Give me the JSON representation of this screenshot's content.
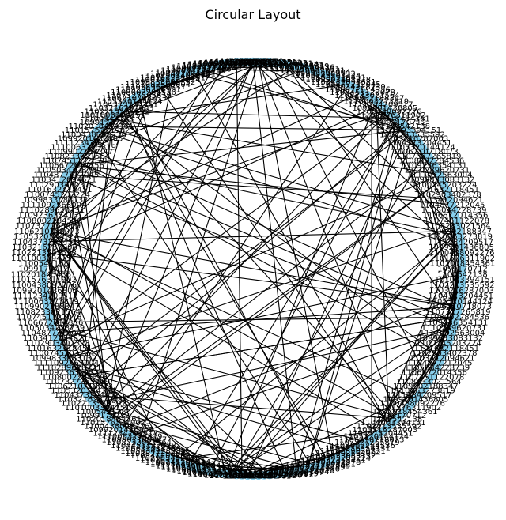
{
  "title": "Circular Layout",
  "colors": {
    "node_fill": "#87CEEB",
    "edge": "#000000",
    "label": "#000000",
    "background": "#FFFFFF"
  },
  "graph": {
    "layout": "circular",
    "node_label_samples": [
      "1099170712",
      "1100542138",
      "1101003394151",
      "1102213535592",
      "1103216287003",
      "1104373204451",
      "1105320144124",
      "1106210718073",
      "1107327265819",
      "1108002284536",
      "1109236354131",
      "1110289620731",
      "1111092563004",
      "1099833083132",
      "1100745203224",
      "1101632118451",
      "1102903402378",
      "1103412094621",
      "1104877212045",
      "1105034228739",
      "1106672014356",
      "1107451122078",
      "1108233021564",
      "1109902188347",
      "1110063273819",
      "1111234209517",
      "1099201436805",
      "1100438092276",
      "1101576311902",
      "1102018454361"
    ]
  }
}
